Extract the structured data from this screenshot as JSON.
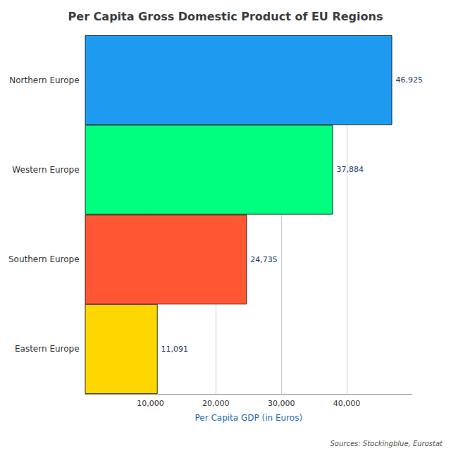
{
  "chart_data": {
    "type": "bar",
    "orientation": "horizontal",
    "title": "Per Capita Gross Domestic Product of EU Regions",
    "categories": [
      "Eastern Europe",
      "Southern Europe",
      "Western Europe",
      "Northern Europe"
    ],
    "values": [
      11091,
      24735,
      37884,
      46925
    ],
    "value_labels": [
      "11,091",
      "24,735",
      "37,884",
      "46,925"
    ],
    "colors": [
      "#FFD700",
      "#FF5733",
      "#00FF7F",
      "#1E9BF0"
    ],
    "xlabel": "Per Capita GDP (in Euros)",
    "xlim": [
      0,
      50000
    ],
    "xticks": [
      {
        "value": 10000,
        "label": "10,000"
      },
      {
        "value": 20000,
        "label": "20,000"
      },
      {
        "value": 30000,
        "label": "30,000"
      },
      {
        "value": 40000,
        "label": "40,000"
      }
    ],
    "grid": true,
    "data_labels": true,
    "annotations": [
      "Sources: Stockingblue, Eurostat"
    ]
  }
}
